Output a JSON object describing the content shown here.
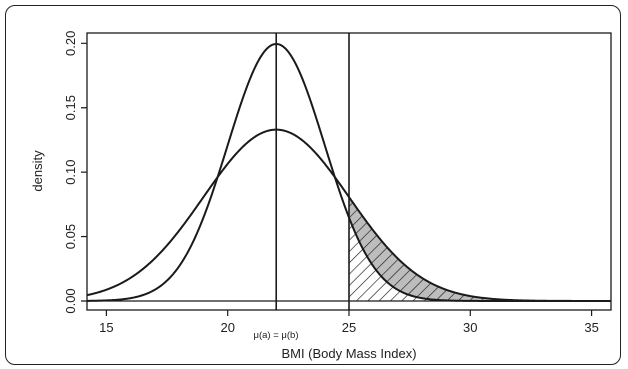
{
  "chart_data": {
    "type": "line",
    "xlabel": "BMI (Body Mass Index)",
    "ylabel": "density",
    "xlim": [
      14.2,
      35.8
    ],
    "ylim": [
      -0.007,
      0.208
    ],
    "x_ticks": [
      15,
      20,
      25,
      30,
      35
    ],
    "y_ticks": [
      0.0,
      0.05,
      0.1,
      0.15,
      0.2
    ],
    "x_tick_labels": [
      "15",
      "20",
      "25",
      "30",
      "35"
    ],
    "y_tick_labels": [
      "0.00",
      "0.05",
      "0.10",
      "0.15",
      "0.20"
    ],
    "series": [
      {
        "mean": 22,
        "sd": 2,
        "peak": 0.199
      },
      {
        "mean": 22,
        "sd": 3,
        "peak": 0.133
      }
    ],
    "vertical_lines": [
      22,
      25
    ],
    "mean_annotation": "μ(a) = μ(b)",
    "threshold": 25,
    "shaded_region": {
      "from": 25,
      "between": "narrow curve and wide curve",
      "fill": "#bdbdbd"
    },
    "hatched_region": {
      "from": 25,
      "under": "wide curve",
      "pattern": "diagonal lines"
    },
    "grid": false,
    "legend": "none"
  },
  "colors": {
    "line": "#1a1a1a",
    "shade": "#bdbdbd",
    "background": "#ffffff"
  }
}
